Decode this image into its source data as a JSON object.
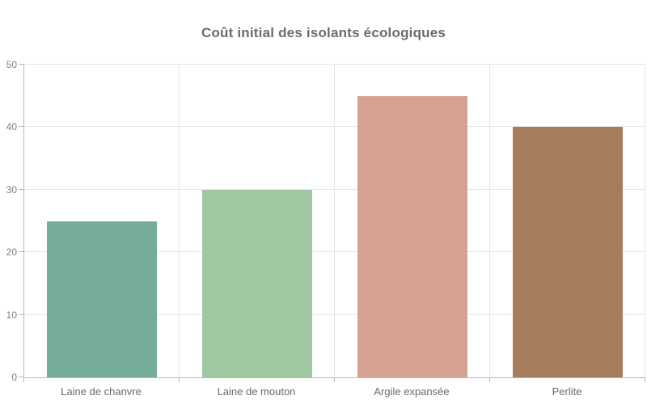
{
  "chart_data": {
    "type": "bar",
    "title": "Coût initial des isolants écologiques",
    "categories": [
      "Laine de chanvre",
      "Laine de mouton",
      "Argile expansée",
      "Perlite"
    ],
    "values": [
      25,
      30,
      45,
      40
    ],
    "xlabel": "",
    "ylabel": "",
    "ylim": [
      0,
      50
    ],
    "yticks": [
      0,
      10,
      20,
      30,
      40,
      50
    ],
    "grid": true,
    "legend": false,
    "bar_colors": [
      "#74ac97",
      "#9fc7a2",
      "#d5a291",
      "#a77c5c"
    ]
  },
  "colors": {
    "background": "#ffffff",
    "grid_line": "#e6e6e6",
    "axis_line": "#b9b9b9",
    "title_text": "#6b6b6b",
    "ytick_text": "#808080",
    "category_text": "#6a6a6a"
  }
}
